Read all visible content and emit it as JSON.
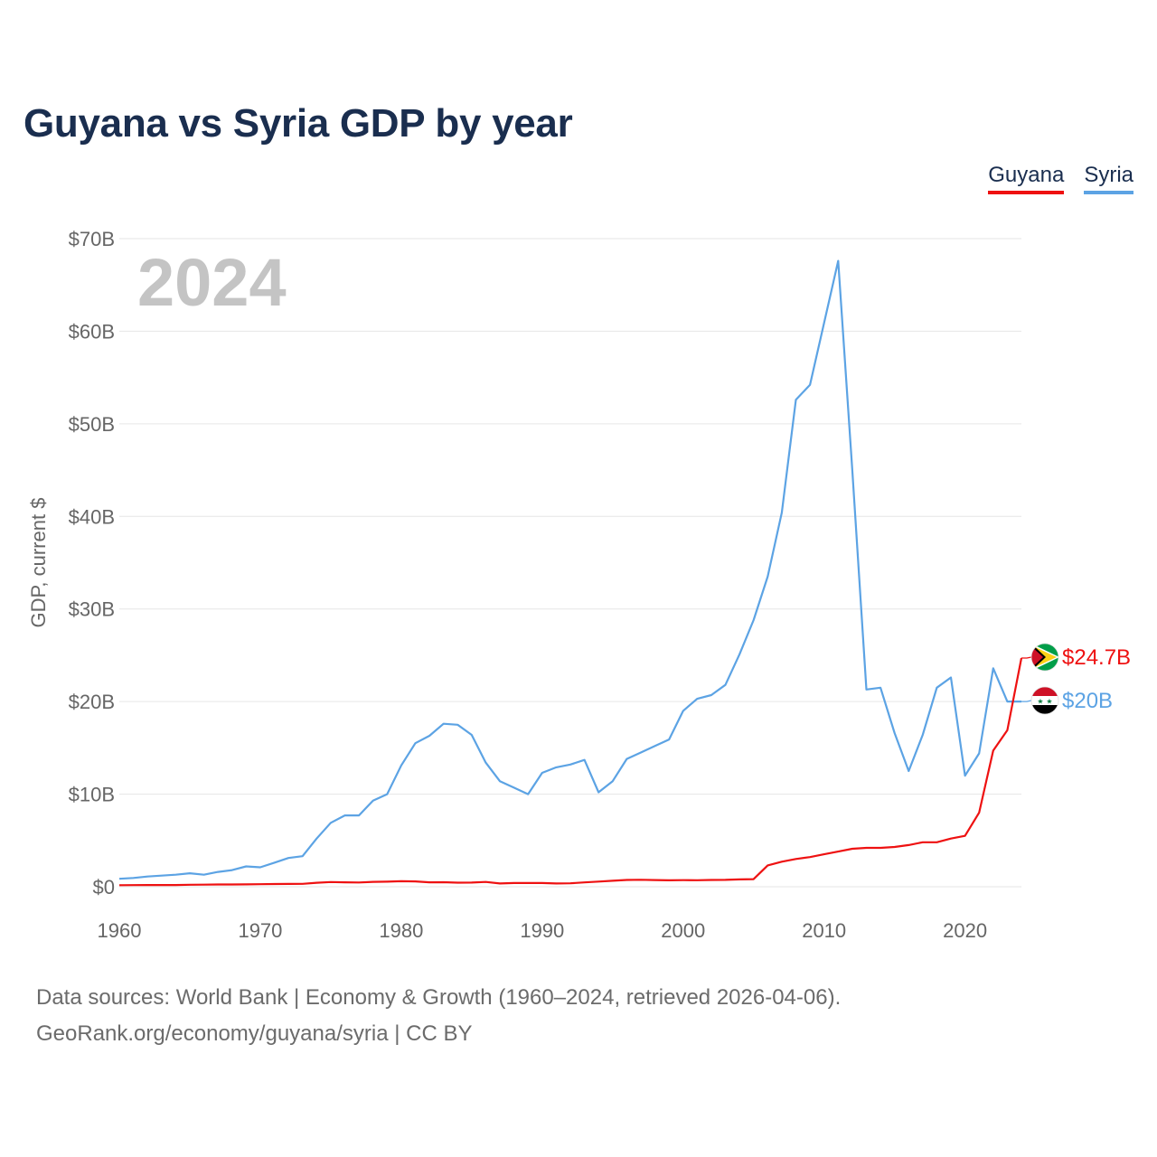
{
  "chart_data": {
    "type": "line",
    "title": "Guyana vs Syria GDP by year",
    "xlabel": "",
    "ylabel": "GDP, current $",
    "xlim": [
      1960,
      2024
    ],
    "ylim": [
      0,
      70
    ],
    "yticks": [
      0,
      10,
      20,
      30,
      40,
      50,
      60,
      70
    ],
    "ytick_labels": [
      "$0",
      "$10B",
      "$20B",
      "$30B",
      "$40B",
      "$50B",
      "$60B",
      "$70B"
    ],
    "xticks": [
      1960,
      1970,
      1980,
      1990,
      2000,
      2010,
      2020
    ],
    "xtick_labels": [
      "1960",
      "1970",
      "1980",
      "1990",
      "2000",
      "2010",
      "2020"
    ],
    "grid": true,
    "year_watermark": "2024",
    "legend_position": "top-right",
    "x": [
      1960,
      1961,
      1962,
      1963,
      1964,
      1965,
      1966,
      1967,
      1968,
      1969,
      1970,
      1971,
      1972,
      1973,
      1974,
      1975,
      1976,
      1977,
      1978,
      1979,
      1980,
      1981,
      1982,
      1983,
      1984,
      1985,
      1986,
      1987,
      1988,
      1989,
      1990,
      1991,
      1992,
      1993,
      1994,
      1995,
      1996,
      1997,
      1998,
      1999,
      2000,
      2001,
      2002,
      2003,
      2004,
      2005,
      2006,
      2007,
      2008,
      2009,
      2010,
      2011,
      2012,
      2013,
      2014,
      2015,
      2016,
      2017,
      2018,
      2019,
      2020,
      2021,
      2022,
      2023,
      2024
    ],
    "series": [
      {
        "name": "Guyana",
        "color": "#ee1111",
        "end_label": "$24.7B",
        "flag_icon": "guyana-flag-icon",
        "values": [
          0.17,
          0.18,
          0.19,
          0.19,
          0.19,
          0.21,
          0.22,
          0.24,
          0.24,
          0.25,
          0.27,
          0.29,
          0.3,
          0.31,
          0.43,
          0.51,
          0.48,
          0.46,
          0.53,
          0.55,
          0.6,
          0.58,
          0.48,
          0.49,
          0.44,
          0.45,
          0.52,
          0.35,
          0.4,
          0.4,
          0.4,
          0.35,
          0.37,
          0.47,
          0.56,
          0.64,
          0.73,
          0.75,
          0.72,
          0.69,
          0.71,
          0.7,
          0.73,
          0.74,
          0.79,
          0.82,
          2.3,
          2.7,
          3.0,
          3.2,
          3.5,
          3.8,
          4.1,
          4.2,
          4.2,
          4.3,
          4.5,
          4.8,
          4.8,
          5.2,
          5.5,
          8.0,
          14.7,
          16.9,
          24.7
        ]
      },
      {
        "name": "Syria",
        "color": "#5ca3e4",
        "end_label": "$20B",
        "flag_icon": "syria-flag-icon",
        "values": [
          0.86,
          0.95,
          1.1,
          1.2,
          1.3,
          1.45,
          1.3,
          1.6,
          1.8,
          2.2,
          2.1,
          2.6,
          3.1,
          3.3,
          5.2,
          6.9,
          7.7,
          7.7,
          9.3,
          10.0,
          13.1,
          15.5,
          16.3,
          17.6,
          17.5,
          16.4,
          13.4,
          11.4,
          10.7,
          10.0,
          12.3,
          12.9,
          13.2,
          13.7,
          10.2,
          11.4,
          13.8,
          14.5,
          15.2,
          15.9,
          19.0,
          20.3,
          20.7,
          21.8,
          25.1,
          28.8,
          33.5,
          40.4,
          52.6,
          54.2,
          60.9,
          67.6,
          45.0,
          21.3,
          21.5,
          16.6,
          12.5,
          16.4,
          21.5,
          22.6,
          12.0,
          14.4,
          23.6,
          20.0,
          20.0
        ]
      }
    ]
  },
  "source_line_1": "Data sources: World Bank | Economy & Growth (1960–2024, retrieved 2026-04-06).",
  "source_line_2": "GeoRank.org/economy/guyana/syria | CC BY"
}
